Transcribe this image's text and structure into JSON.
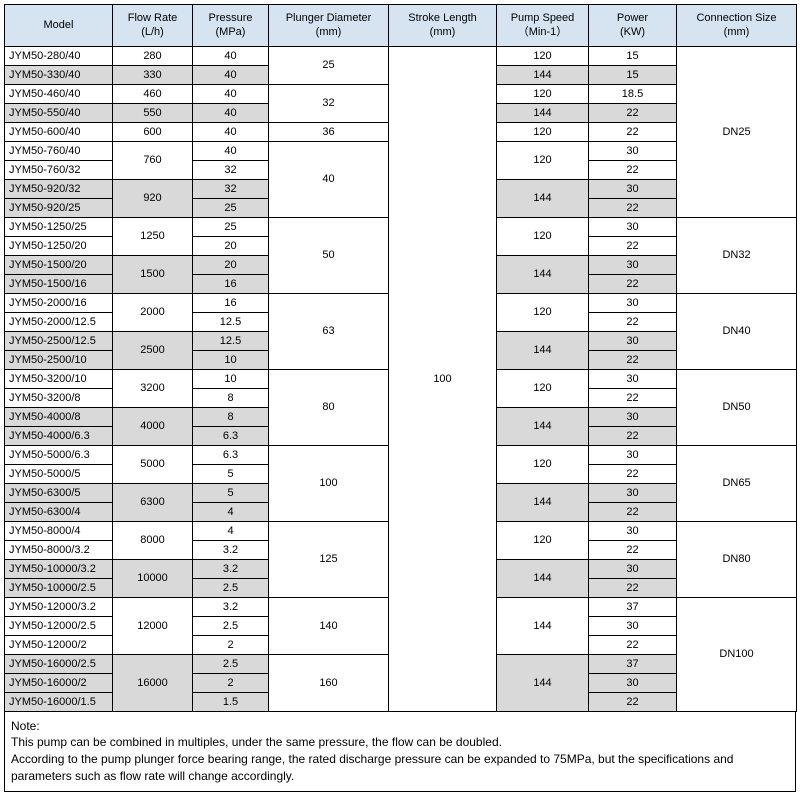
{
  "headers": [
    {
      "l1": "Model",
      "l2": ""
    },
    {
      "l1": "Flow Rate",
      "l2": "(L/h)"
    },
    {
      "l1": "Pressure",
      "l2": "(MPa)"
    },
    {
      "l1": "Plunger Diameter",
      "l2": "(mm)"
    },
    {
      "l1": "Stroke Length",
      "l2": "(mm)"
    },
    {
      "l1": "Pump Speed",
      "l2": "（Min-1）"
    },
    {
      "l1": "Power",
      "l2": "(KW)"
    },
    {
      "l1": "Connection Size",
      "l2": "(mm)"
    }
  ],
  "stroke_length": "100",
  "groups": [
    {
      "conn": "DN25",
      "plunger_groups": [
        {
          "plunger": "25",
          "rows": [
            {
              "model": "JYM50-280/40",
              "flow": "280",
              "pressure": "40",
              "speed": "120",
              "power": "15",
              "shade": false,
              "flow_span": 1,
              "speed_span": 1
            },
            {
              "model": "JYM50-330/40",
              "flow": "330",
              "pressure": "40",
              "speed": "144",
              "power": "15",
              "shade": true,
              "flow_span": 1,
              "speed_span": 1
            }
          ]
        },
        {
          "plunger": "32",
          "rows": [
            {
              "model": "JYM50-460/40",
              "flow": "460",
              "pressure": "40",
              "speed": "120",
              "power": "18.5",
              "shade": false,
              "flow_span": 1,
              "speed_span": 1
            },
            {
              "model": "JYM50-550/40",
              "flow": "550",
              "pressure": "40",
              "speed": "144",
              "power": "22",
              "shade": true,
              "flow_span": 1,
              "speed_span": 1
            }
          ]
        },
        {
          "plunger": "36",
          "rows": [
            {
              "model": "JYM50-600/40",
              "flow": "600",
              "pressure": "40",
              "speed": "120",
              "power": "22",
              "shade": false,
              "flow_span": 1,
              "speed_span": 1
            }
          ]
        },
        {
          "plunger": "40",
          "rows": [
            {
              "model": "JYM50-760/40",
              "flow": "760",
              "pressure": "40",
              "speed": "120",
              "power": "30",
              "shade": false,
              "flow_span": 2,
              "speed_span": 2
            },
            {
              "model": "JYM50-760/32",
              "flow": null,
              "pressure": "32",
              "speed": null,
              "power": "22",
              "shade": false
            },
            {
              "model": "JYM50-920/32",
              "flow": "920",
              "pressure": "32",
              "speed": "144",
              "power": "30",
              "shade": true,
              "flow_span": 2,
              "speed_span": 2
            },
            {
              "model": "JYM50-920/25",
              "flow": null,
              "pressure": "25",
              "speed": null,
              "power": "22",
              "shade": true
            }
          ]
        }
      ]
    },
    {
      "conn": "DN32",
      "plunger_groups": [
        {
          "plunger": "50",
          "rows": [
            {
              "model": "JYM50-1250/25",
              "flow": "1250",
              "pressure": "25",
              "speed": "120",
              "power": "30",
              "shade": false,
              "flow_span": 2,
              "speed_span": 2
            },
            {
              "model": "JYM50-1250/20",
              "flow": null,
              "pressure": "20",
              "speed": null,
              "power": "22",
              "shade": false
            },
            {
              "model": "JYM50-1500/20",
              "flow": "1500",
              "pressure": "20",
              "speed": "144",
              "power": "30",
              "shade": true,
              "flow_span": 2,
              "speed_span": 2
            },
            {
              "model": "JYM50-1500/16",
              "flow": null,
              "pressure": "16",
              "speed": null,
              "power": "22",
              "shade": true
            }
          ]
        }
      ]
    },
    {
      "conn": "DN40",
      "plunger_groups": [
        {
          "plunger": "63",
          "rows": [
            {
              "model": "JYM50-2000/16",
              "flow": "2000",
              "pressure": "16",
              "speed": "120",
              "power": "30",
              "shade": false,
              "flow_span": 2,
              "speed_span": 2
            },
            {
              "model": "JYM50-2000/12.5",
              "flow": null,
              "pressure": "12.5",
              "speed": null,
              "power": "22",
              "shade": false
            },
            {
              "model": "JYM50-2500/12.5",
              "flow": "2500",
              "pressure": "12.5",
              "speed": "144",
              "power": "30",
              "shade": true,
              "flow_span": 2,
              "speed_span": 2
            },
            {
              "model": "JYM50-2500/10",
              "flow": null,
              "pressure": "10",
              "speed": null,
              "power": "22",
              "shade": true
            }
          ]
        }
      ]
    },
    {
      "conn": "DN50",
      "plunger_groups": [
        {
          "plunger": "80",
          "rows": [
            {
              "model": "JYM50-3200/10",
              "flow": "3200",
              "pressure": "10",
              "speed": "120",
              "power": "30",
              "shade": false,
              "flow_span": 2,
              "speed_span": 2
            },
            {
              "model": "JYM50-3200/8",
              "flow": null,
              "pressure": "8",
              "speed": null,
              "power": "22",
              "shade": false
            },
            {
              "model": "JYM50-4000/8",
              "flow": "4000",
              "pressure": "8",
              "speed": "144",
              "power": "30",
              "shade": true,
              "flow_span": 2,
              "speed_span": 2
            },
            {
              "model": "JYM50-4000/6.3",
              "flow": null,
              "pressure": "6.3",
              "speed": null,
              "power": "22",
              "shade": true
            }
          ]
        }
      ]
    },
    {
      "conn": "DN65",
      "plunger_groups": [
        {
          "plunger": "100",
          "rows": [
            {
              "model": "JYM50-5000/6.3",
              "flow": "5000",
              "pressure": "6.3",
              "speed": "120",
              "power": "30",
              "shade": false,
              "flow_span": 2,
              "speed_span": 2
            },
            {
              "model": "JYM50-5000/5",
              "flow": null,
              "pressure": "5",
              "speed": null,
              "power": "22",
              "shade": false
            },
            {
              "model": "JYM50-6300/5",
              "flow": "6300",
              "pressure": "5",
              "speed": "144",
              "power": "30",
              "shade": true,
              "flow_span": 2,
              "speed_span": 2
            },
            {
              "model": "JYM50-6300/4",
              "flow": null,
              "pressure": "4",
              "speed": null,
              "power": "22",
              "shade": true
            }
          ]
        }
      ]
    },
    {
      "conn": "DN80",
      "plunger_groups": [
        {
          "plunger": "125",
          "rows": [
            {
              "model": "JYM50-8000/4",
              "flow": "8000",
              "pressure": "4",
              "speed": "120",
              "power": "30",
              "shade": false,
              "flow_span": 2,
              "speed_span": 2
            },
            {
              "model": "JYM50-8000/3.2",
              "flow": null,
              "pressure": "3.2",
              "speed": null,
              "power": "22",
              "shade": false
            },
            {
              "model": "JYM50-10000/3.2",
              "flow": "10000",
              "pressure": "3.2",
              "speed": "144",
              "power": "30",
              "shade": true,
              "flow_span": 2,
              "speed_span": 2
            },
            {
              "model": "JYM50-10000/2.5",
              "flow": null,
              "pressure": "2.5",
              "speed": null,
              "power": "22",
              "shade": true
            }
          ]
        }
      ]
    },
    {
      "conn": "DN100",
      "plunger_groups": [
        {
          "plunger": "140",
          "rows": [
            {
              "model": "JYM50-12000/3.2",
              "flow": "12000",
              "pressure": "3.2",
              "speed": "144",
              "power": "37",
              "shade": false,
              "flow_span": 3,
              "speed_span": 3
            },
            {
              "model": "JYM50-12000/2.5",
              "flow": null,
              "pressure": "2.5",
              "speed": null,
              "power": "30",
              "shade": false
            },
            {
              "model": "JYM50-12000/2",
              "flow": null,
              "pressure": "2",
              "speed": null,
              "power": "22",
              "shade": false
            }
          ]
        },
        {
          "plunger": "160",
          "rows": [
            {
              "model": "JYM50-16000/2.5",
              "flow": "16000",
              "pressure": "2.5",
              "speed": "144",
              "power": "37",
              "shade": true,
              "flow_span": 3,
              "speed_span": 3
            },
            {
              "model": "JYM50-16000/2",
              "flow": null,
              "pressure": "2",
              "speed": null,
              "power": "30",
              "shade": true
            },
            {
              "model": "JYM50-16000/1.5",
              "flow": null,
              "pressure": "1.5",
              "speed": null,
              "power": "22",
              "shade": true
            }
          ]
        }
      ]
    }
  ],
  "notes": {
    "title": "Note:",
    "line1": "This pump can be combined in multiples, under the same pressure, the flow can be doubled.",
    "line2": "According to the pump plunger force bearing range, the rated discharge pressure can be expanded to 75MPa, but the specifications and parameters such as flow rate will change accordingly."
  }
}
